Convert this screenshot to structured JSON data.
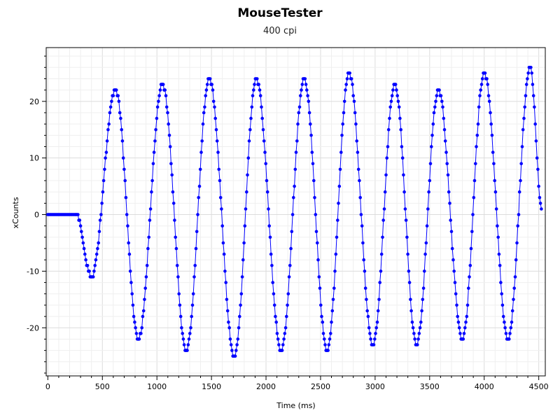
{
  "chart_data": {
    "type": "scatter",
    "title": "MouseTester",
    "subtitle": "400 cpi",
    "xlabel": "Time (ms)",
    "ylabel": "xCounts",
    "xlim": [
      -15,
      4560
    ],
    "ylim": [
      -28.5,
      29.5
    ],
    "x_ticks": [
      0,
      500,
      1000,
      1500,
      2000,
      2500,
      3000,
      3500,
      4000,
      4500
    ],
    "y_ticks": [
      -20,
      -10,
      0,
      10,
      20
    ],
    "grid": true,
    "legend": "none",
    "series": [
      {
        "color": "#0000ff",
        "marker": "circle",
        "line": true,
        "segments": [
          {
            "t": [
              0,
              260
            ],
            "shape": "flat",
            "value": 0
          },
          {
            "t": [
              260,
              400
            ],
            "shape": "halfcos",
            "from": 0,
            "to": -11
          },
          {
            "t": [
              400,
              620
            ],
            "shape": "halfcos",
            "from": -11,
            "to": 22
          },
          {
            "t": [
              620,
              830
            ],
            "shape": "halfcos",
            "from": 22,
            "to": -22
          },
          {
            "t": [
              830,
              1050
            ],
            "shape": "halfcos",
            "from": -22,
            "to": 23
          },
          {
            "t": [
              1050,
              1270
            ],
            "shape": "halfcos",
            "from": 23,
            "to": -24
          },
          {
            "t": [
              1270,
              1480
            ],
            "shape": "halfcos",
            "from": -24,
            "to": 24
          },
          {
            "t": [
              1480,
              1710
            ],
            "shape": "halfcos",
            "from": 24,
            "to": -25
          },
          {
            "t": [
              1710,
              1910
            ],
            "shape": "halfcos",
            "from": -25,
            "to": 24
          },
          {
            "t": [
              1910,
              2140
            ],
            "shape": "halfcos",
            "from": 24,
            "to": -24
          },
          {
            "t": [
              2140,
              2350
            ],
            "shape": "halfcos",
            "from": -24,
            "to": 24
          },
          {
            "t": [
              2350,
              2560
            ],
            "shape": "halfcos",
            "from": 24,
            "to": -24
          },
          {
            "t": [
              2560,
              2760
            ],
            "shape": "halfcos",
            "from": -24,
            "to": 25
          },
          {
            "t": [
              2760,
              2980
            ],
            "shape": "halfcos",
            "from": 25,
            "to": -23
          },
          {
            "t": [
              2980,
              3180
            ],
            "shape": "halfcos",
            "from": -23,
            "to": 23
          },
          {
            "t": [
              3180,
              3380
            ],
            "shape": "halfcos",
            "from": 23,
            "to": -23
          },
          {
            "t": [
              3380,
              3580
            ],
            "shape": "halfcos",
            "from": -23,
            "to": 22
          },
          {
            "t": [
              3580,
              3800
            ],
            "shape": "halfcos",
            "from": 22,
            "to": -22
          },
          {
            "t": [
              3800,
              4000
            ],
            "shape": "halfcos",
            "from": -22,
            "to": 25
          },
          {
            "t": [
              4000,
              4220
            ],
            "shape": "halfcos",
            "from": 25,
            "to": -22
          },
          {
            "t": [
              4220,
              4420
            ],
            "shape": "halfcos",
            "from": -22,
            "to": 26
          },
          {
            "t": [
              4420,
              4530
            ],
            "shape": "halfcos",
            "from": 26,
            "to": 1
          }
        ],
        "sample_interval_ms": 8
      }
    ]
  }
}
